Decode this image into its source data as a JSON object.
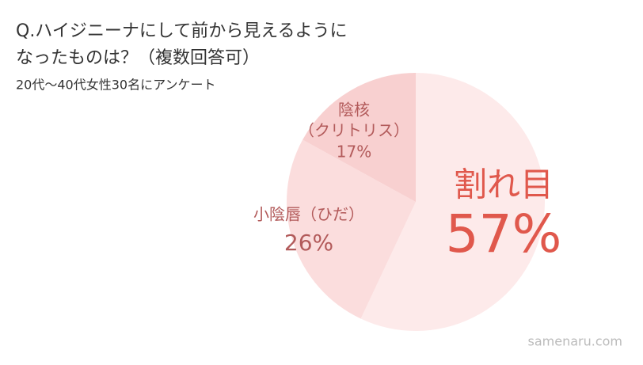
{
  "chart_data": {
    "type": "pie",
    "title": [
      "Q.ハイジニーナにして前から見えるように",
      "なったものは？（複数回答可）"
    ],
    "subtitle": "20代〜40代女性30名にアンケート",
    "categories": [
      "割れ目",
      "小陰唇（ひだ）",
      [
        "陰核",
        "（クリトリス）"
      ]
    ],
    "values": [
      57,
      26,
      17
    ],
    "value_labels": [
      "57%",
      "26%",
      "17%"
    ],
    "colors": [
      "#fdeaea",
      "#fbdddd",
      "#f8d0d0"
    ],
    "source": "samenaru.com"
  }
}
